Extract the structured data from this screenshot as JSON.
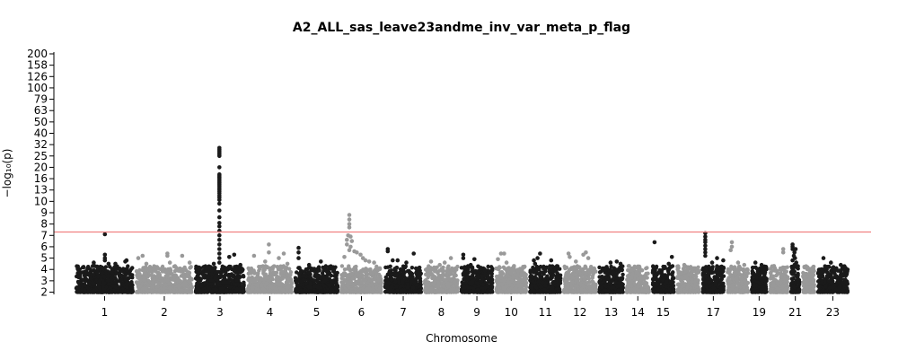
{
  "chart_data": {
    "type": "scatter",
    "subtype": "manhattan",
    "title": "A2_ALL_sas_leave23andme_inv_var_meta_p_flag",
    "xlabel": "Chromosome",
    "ylabel": "−log₁₀(p)",
    "y_axis_scale": "piecewise (linear 2–10, compressed above)",
    "yticks": [
      2,
      3,
      4,
      5,
      6,
      7,
      8,
      9,
      10,
      13,
      16,
      20,
      25,
      32,
      40,
      50,
      63,
      79,
      100,
      126,
      158,
      200
    ],
    "ytick_labels": [
      "2",
      "3",
      "4",
      "5",
      "6",
      "7",
      "8",
      "9",
      "10",
      "13",
      "16",
      "20",
      "25",
      "32",
      "40",
      "50",
      "63",
      "79",
      "100",
      "126",
      "158",
      "200"
    ],
    "ylim": [
      2,
      200
    ],
    "xtick_labels": [
      "1",
      "2",
      "3",
      "4",
      "5",
      "6",
      "7",
      "8",
      "9",
      "10",
      "11",
      "12",
      "13",
      "14",
      "15",
      "17",
      "19",
      "21",
      "23"
    ],
    "significance_threshold": {
      "value": 7.3,
      "color": "#f08080"
    },
    "colors": {
      "odd": "#1a1a1a",
      "even": "#999999"
    },
    "chromosomes": [
      {
        "name": "1",
        "label": "1",
        "x_start": 0,
        "x_end": 97,
        "max_y": 7.1,
        "color": "odd",
        "hits": [
          {
            "x": 49,
            "y": 7.1
          },
          {
            "x": 49,
            "y": 5.3
          },
          {
            "x": 49,
            "y": 5.0
          },
          {
            "x": 49,
            "y": 4.8
          },
          {
            "x": 84,
            "y": 4.8
          },
          {
            "x": 82,
            "y": 4.7
          },
          {
            "x": 31,
            "y": 4.6
          },
          {
            "x": 55,
            "y": 4.5
          },
          {
            "x": 66,
            "y": 4.5
          },
          {
            "x": 65,
            "y": 4.2
          }
        ]
      },
      {
        "name": "2",
        "label": "2",
        "x_start": 97,
        "x_end": 193,
        "max_y": 5.4,
        "color": "even",
        "hits": [
          {
            "x": 150,
            "y": 5.4
          },
          {
            "x": 150,
            "y": 5.2
          },
          {
            "x": 110,
            "y": 5.2
          },
          {
            "x": 174,
            "y": 5.2
          },
          {
            "x": 103,
            "y": 5.0
          },
          {
            "x": 116,
            "y": 4.5
          },
          {
            "x": 186,
            "y": 4.6
          },
          {
            "x": 154,
            "y": 4.6
          }
        ]
      },
      {
        "name": "3",
        "label": "3",
        "x_start": 193,
        "x_end": 277,
        "max_y": 30,
        "color": "odd",
        "hits": [
          {
            "x": 234,
            "y": 30
          },
          {
            "x": 234,
            "y": 29
          },
          {
            "x": 234,
            "y": 28
          },
          {
            "x": 234,
            "y": 27
          },
          {
            "x": 234,
            "y": 26
          },
          {
            "x": 234,
            "y": 25
          },
          {
            "x": 234,
            "y": 20
          },
          {
            "x": 234,
            "y": 17.5
          },
          {
            "x": 234,
            "y": 17
          },
          {
            "x": 234,
            "y": 16.6
          },
          {
            "x": 234,
            "y": 16.2
          },
          {
            "x": 234,
            "y": 15.7
          },
          {
            "x": 234,
            "y": 15.3
          },
          {
            "x": 234,
            "y": 14.9
          },
          {
            "x": 234,
            "y": 14.5
          },
          {
            "x": 234,
            "y": 14.1
          },
          {
            "x": 234,
            "y": 13.6
          },
          {
            "x": 234,
            "y": 13.1
          },
          {
            "x": 234,
            "y": 12.6
          },
          {
            "x": 234,
            "y": 12.1
          },
          {
            "x": 234,
            "y": 11.5
          },
          {
            "x": 234,
            "y": 11.0
          },
          {
            "x": 234,
            "y": 10.4
          },
          {
            "x": 234,
            "y": 9.8
          },
          {
            "x": 234,
            "y": 9.2
          },
          {
            "x": 234,
            "y": 8.6
          },
          {
            "x": 234,
            "y": 8.1
          },
          {
            "x": 234,
            "y": 7.8
          },
          {
            "x": 234,
            "y": 7.4
          },
          {
            "x": 234,
            "y": 7.0
          },
          {
            "x": 234,
            "y": 6.6
          },
          {
            "x": 234,
            "y": 6.2
          },
          {
            "x": 234,
            "y": 5.8
          },
          {
            "x": 234,
            "y": 5.4
          },
          {
            "x": 234,
            "y": 5.0
          },
          {
            "x": 234,
            "y": 4.6
          },
          {
            "x": 258,
            "y": 5.3
          },
          {
            "x": 250,
            "y": 5.1
          },
          {
            "x": 225,
            "y": 4.5
          },
          {
            "x": 268,
            "y": 4.4
          }
        ]
      },
      {
        "name": "4",
        "label": "4",
        "x_start": 277,
        "x_end": 354,
        "max_y": 6.2,
        "color": "even",
        "hits": [
          {
            "x": 314,
            "y": 6.2
          },
          {
            "x": 314,
            "y": 5.5
          },
          {
            "x": 290,
            "y": 5.2
          },
          {
            "x": 338,
            "y": 5.4
          },
          {
            "x": 330,
            "y": 5.0
          },
          {
            "x": 308,
            "y": 4.7
          },
          {
            "x": 344,
            "y": 4.5
          }
        ]
      },
      {
        "name": "5",
        "label": "5",
        "x_start": 354,
        "x_end": 428,
        "max_y": 5.9,
        "color": "odd",
        "hits": [
          {
            "x": 362,
            "y": 5.9
          },
          {
            "x": 362,
            "y": 5.5
          },
          {
            "x": 362,
            "y": 5.0
          },
          {
            "x": 398,
            "y": 4.7
          },
          {
            "x": 379,
            "y": 4.4
          },
          {
            "x": 418,
            "y": 4.2
          }
        ]
      },
      {
        "name": "6",
        "label": "6",
        "x_start": 428,
        "x_end": 499,
        "max_y": 8.8,
        "color": "even",
        "hits": [
          {
            "x": 444,
            "y": 8.8
          },
          {
            "x": 444,
            "y": 8.4
          },
          {
            "x": 444,
            "y": 8.0
          },
          {
            "x": 444,
            "y": 7.7
          },
          {
            "x": 442,
            "y": 7.0
          },
          {
            "x": 446,
            "y": 6.9
          },
          {
            "x": 440,
            "y": 6.6
          },
          {
            "x": 448,
            "y": 6.5
          },
          {
            "x": 440,
            "y": 6.2
          },
          {
            "x": 446,
            "y": 6.0
          },
          {
            "x": 444,
            "y": 5.7
          },
          {
            "x": 452,
            "y": 5.6
          },
          {
            "x": 456,
            "y": 5.5
          },
          {
            "x": 436,
            "y": 5.1
          },
          {
            "x": 462,
            "y": 5.3
          },
          {
            "x": 466,
            "y": 5.0
          },
          {
            "x": 470,
            "y": 4.8
          },
          {
            "x": 476,
            "y": 4.7
          },
          {
            "x": 484,
            "y": 4.6
          }
        ]
      },
      {
        "name": "7",
        "label": "7",
        "x_start": 499,
        "x_end": 563,
        "max_y": 5.8,
        "color": "odd",
        "hits": [
          {
            "x": 506,
            "y": 5.8
          },
          {
            "x": 506,
            "y": 5.6
          },
          {
            "x": 548,
            "y": 5.4
          },
          {
            "x": 522,
            "y": 4.8
          },
          {
            "x": 536,
            "y": 4.6
          },
          {
            "x": 514,
            "y": 4.8
          }
        ]
      },
      {
        "name": "8",
        "label": "8",
        "x_start": 563,
        "x_end": 622,
        "max_y": 5.0,
        "color": "even",
        "hits": [
          {
            "x": 608,
            "y": 5.0
          },
          {
            "x": 576,
            "y": 4.7
          },
          {
            "x": 598,
            "y": 4.6
          },
          {
            "x": 590,
            "y": 4.4
          }
        ]
      },
      {
        "name": "9",
        "label": "9",
        "x_start": 622,
        "x_end": 678,
        "max_y": 5.3,
        "color": "odd",
        "hits": [
          {
            "x": 628,
            "y": 5.3
          },
          {
            "x": 628,
            "y": 5.0
          },
          {
            "x": 646,
            "y": 4.9
          },
          {
            "x": 640,
            "y": 4.4
          }
        ]
      },
      {
        "name": "10",
        "label": "10",
        "x_start": 678,
        "x_end": 733,
        "max_y": 5.4,
        "color": "even",
        "hits": [
          {
            "x": 689,
            "y": 5.4
          },
          {
            "x": 694,
            "y": 5.4
          },
          {
            "x": 684,
            "y": 4.9
          },
          {
            "x": 698,
            "y": 4.6
          },
          {
            "x": 710,
            "y": 4.3
          }
        ]
      },
      {
        "name": "11",
        "label": "11",
        "x_start": 733,
        "x_end": 788,
        "max_y": 5.4,
        "color": "odd",
        "hits": [
          {
            "x": 752,
            "y": 5.4
          },
          {
            "x": 748,
            "y": 5.0
          },
          {
            "x": 742,
            "y": 4.8
          },
          {
            "x": 770,
            "y": 4.8
          },
          {
            "x": 744,
            "y": 4.5
          }
        ]
      },
      {
        "name": "12",
        "label": "12",
        "x_start": 788,
        "x_end": 845,
        "max_y": 5.5,
        "color": "even",
        "hits": [
          {
            "x": 826,
            "y": 5.5
          },
          {
            "x": 822,
            "y": 5.3
          },
          {
            "x": 798,
            "y": 5.4
          },
          {
            "x": 800,
            "y": 5.1
          },
          {
            "x": 830,
            "y": 5.0
          },
          {
            "x": 810,
            "y": 4.7
          }
        ]
      },
      {
        "name": "13",
        "label": "13",
        "x_start": 845,
        "x_end": 889,
        "max_y": 4.7,
        "color": "odd",
        "hits": [
          {
            "x": 876,
            "y": 4.7
          },
          {
            "x": 866,
            "y": 4.6
          },
          {
            "x": 882,
            "y": 4.5
          }
        ]
      },
      {
        "name": "14",
        "label": "14",
        "x_start": 889,
        "x_end": 931,
        "max_y": 4.3,
        "color": "even",
        "hits": [
          {
            "x": 896,
            "y": 4.3
          },
          {
            "x": 910,
            "y": 4.2
          }
        ]
      },
      {
        "name": "15",
        "label": "15",
        "x_start": 931,
        "x_end": 971,
        "max_y": 6.4,
        "color": "odd",
        "hits": [
          {
            "x": 937,
            "y": 6.4
          },
          {
            "x": 965,
            "y": 5.1
          },
          {
            "x": 960,
            "y": 4.5
          }
        ]
      },
      {
        "name": "16",
        "label": "",
        "x_start": 971,
        "x_end": 1012,
        "max_y": 4.4,
        "color": "even",
        "hits": [
          {
            "x": 985,
            "y": 4.4
          },
          {
            "x": 1000,
            "y": 4.1
          }
        ]
      },
      {
        "name": "17",
        "label": "17",
        "x_start": 1012,
        "x_end": 1052,
        "max_y": 7.2,
        "color": "odd",
        "hits": [
          {
            "x": 1019,
            "y": 7.2
          },
          {
            "x": 1019,
            "y": 6.9
          },
          {
            "x": 1019,
            "y": 6.6
          },
          {
            "x": 1019,
            "y": 6.4
          },
          {
            "x": 1019,
            "y": 6.1
          },
          {
            "x": 1019,
            "y": 5.8
          },
          {
            "x": 1019,
            "y": 5.5
          },
          {
            "x": 1019,
            "y": 5.2
          },
          {
            "x": 1038,
            "y": 5.0
          },
          {
            "x": 1048,
            "y": 4.8
          },
          {
            "x": 1030,
            "y": 4.6
          }
        ]
      },
      {
        "name": "18",
        "label": "",
        "x_start": 1052,
        "x_end": 1091,
        "max_y": 6.4,
        "color": "even",
        "hits": [
          {
            "x": 1062,
            "y": 6.4
          },
          {
            "x": 1062,
            "y": 6.0
          },
          {
            "x": 1060,
            "y": 5.7
          },
          {
            "x": 1072,
            "y": 4.6
          },
          {
            "x": 1082,
            "y": 4.4
          }
        ]
      },
      {
        "name": "19",
        "label": "19",
        "x_start": 1091,
        "x_end": 1121,
        "max_y": 4.6,
        "color": "odd",
        "hits": [
          {
            "x": 1100,
            "y": 4.6
          },
          {
            "x": 1110,
            "y": 4.4
          }
        ]
      },
      {
        "name": "20",
        "label": "",
        "x_start": 1121,
        "x_end": 1155,
        "max_y": 5.8,
        "color": "even",
        "hits": [
          {
            "x": 1145,
            "y": 5.8
          },
          {
            "x": 1145,
            "y": 5.5
          },
          {
            "x": 1130,
            "y": 4.3
          }
        ]
      },
      {
        "name": "21",
        "label": "21",
        "x_start": 1155,
        "x_end": 1174,
        "max_y": 6.2,
        "color": "odd",
        "hits": [
          {
            "x": 1160,
            "y": 6.2
          },
          {
            "x": 1160,
            "y": 6.0
          },
          {
            "x": 1160,
            "y": 5.8
          },
          {
            "x": 1165,
            "y": 5.8
          },
          {
            "x": 1163,
            "y": 5.5
          },
          {
            "x": 1162,
            "y": 5.2
          },
          {
            "x": 1164,
            "y": 5.0
          },
          {
            "x": 1160,
            "y": 4.8
          },
          {
            "x": 1166,
            "y": 4.6
          },
          {
            "x": 1163,
            "y": 4.4
          }
        ]
      },
      {
        "name": "22",
        "label": "",
        "x_start": 1174,
        "x_end": 1198,
        "max_y": 4.2,
        "color": "even",
        "hits": [
          {
            "x": 1184,
            "y": 4.2
          },
          {
            "x": 1190,
            "y": 4.0
          }
        ]
      },
      {
        "name": "23",
        "label": "23",
        "x_start": 1198,
        "x_end": 1252,
        "max_y": 5.0,
        "color": "odd",
        "hits": [
          {
            "x": 1210,
            "y": 5.0
          },
          {
            "x": 1222,
            "y": 4.6
          },
          {
            "x": 1238,
            "y": 4.4
          },
          {
            "x": 1226,
            "y": 4.2
          },
          {
            "x": 1244,
            "y": 4.0
          }
        ]
      }
    ]
  }
}
